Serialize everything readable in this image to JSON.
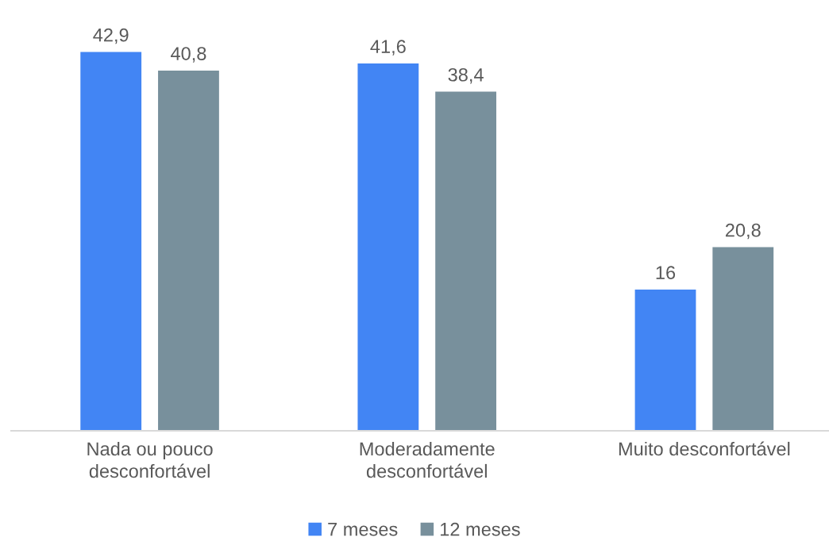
{
  "chart_data": {
    "type": "bar",
    "categories": [
      "Nada ou pouco\ndesconfortável",
      "Moderadamente\ndesconfortável",
      "Muito desconfortável"
    ],
    "series": [
      {
        "name": "7 meses",
        "color": "#4285f4",
        "values": [
          42.9,
          41.6,
          16
        ],
        "value_labels": [
          "42,9",
          "41,6",
          "16"
        ]
      },
      {
        "name": "12 meses",
        "color": "#78909c",
        "values": [
          40.8,
          38.4,
          20.8
        ],
        "value_labels": [
          "40,8",
          "38,4",
          "20,8"
        ]
      }
    ],
    "legend": "bottom"
  }
}
